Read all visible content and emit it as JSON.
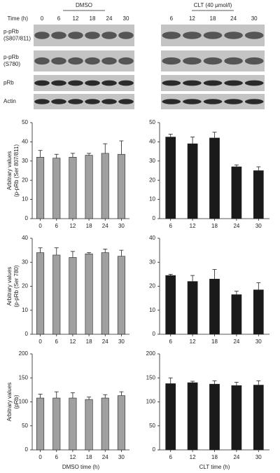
{
  "blot": {
    "time_label": "Time (h)",
    "groups": [
      {
        "label": "DMSO",
        "times": [
          "0",
          "6",
          "12",
          "18",
          "24",
          "30"
        ]
      },
      {
        "label": "CLT (40 μmol/l)",
        "times": [
          "6",
          "12",
          "18",
          "24",
          "30"
        ]
      }
    ],
    "rows": [
      [
        "p-pRb",
        "(S807/811)"
      ],
      [
        "p-pRb",
        "(S780)"
      ],
      [
        "pRb"
      ],
      [
        "Actin"
      ]
    ]
  },
  "chart_data": [
    {
      "type": "bar",
      "ylabel": [
        "Arbitrary values",
        "(p-pRb (Ser 807/811)"
      ],
      "categories": [
        "0",
        "6",
        "12",
        "18",
        "24",
        "30"
      ],
      "values": [
        32,
        31.5,
        32,
        33,
        34,
        33.5
      ],
      "errors": [
        3.5,
        2,
        2,
        1,
        5,
        7
      ],
      "color": "#a0a0a0",
      "ylim": [
        0,
        50
      ],
      "yticks": [
        0,
        10,
        20,
        30,
        40,
        50
      ]
    },
    {
      "type": "bar",
      "categories": [
        "6",
        "12",
        "18",
        "24",
        "30"
      ],
      "values": [
        42.5,
        39,
        42,
        27,
        25
      ],
      "errors": [
        1.5,
        3.5,
        3,
        1,
        2
      ],
      "color": "#1a1a1a",
      "ylim": [
        0,
        50
      ],
      "yticks": [
        0,
        10,
        20,
        30,
        40,
        50
      ]
    },
    {
      "type": "bar",
      "ylabel": [
        "Arbitrary values",
        "(p-pRb (Ser 780)"
      ],
      "categories": [
        "0",
        "6",
        "12",
        "18",
        "24",
        "30"
      ],
      "values": [
        34,
        33,
        32,
        33.5,
        34,
        32.5
      ],
      "errors": [
        2,
        3,
        2.5,
        0.5,
        1.5,
        2.5
      ],
      "color": "#a0a0a0",
      "ylim": [
        0,
        40
      ],
      "yticks": [
        0,
        10,
        20,
        30,
        40
      ]
    },
    {
      "type": "bar",
      "categories": [
        "6",
        "12",
        "18",
        "24",
        "30"
      ],
      "values": [
        24.5,
        22,
        23,
        16.5,
        18.5
      ],
      "errors": [
        0.5,
        2.5,
        4,
        1.5,
        3
      ],
      "color": "#1a1a1a",
      "ylim": [
        0,
        40
      ],
      "yticks": [
        0,
        10,
        20,
        30,
        40
      ]
    },
    {
      "type": "bar",
      "ylabel": [
        "Arbitrary values",
        "(pRb)"
      ],
      "xlabel": "DMSO time (h)",
      "categories": [
        "0",
        "6",
        "12",
        "18",
        "24",
        "30"
      ],
      "values": [
        108,
        108,
        108,
        105,
        108,
        113
      ],
      "errors": [
        8,
        13,
        11,
        5,
        7,
        8
      ],
      "color": "#a0a0a0",
      "ylim": [
        0,
        200
      ],
      "yticks": [
        0,
        50,
        100,
        150,
        200
      ]
    },
    {
      "type": "bar",
      "xlabel": "CLT time (h)",
      "categories": [
        "6",
        "12",
        "18",
        "24",
        "30"
      ],
      "values": [
        138,
        140,
        137,
        134,
        135
      ],
      "errors": [
        12,
        3,
        7,
        7,
        9
      ],
      "color": "#1a1a1a",
      "ylim": [
        0,
        200
      ],
      "yticks": [
        0,
        50,
        100,
        150,
        200
      ]
    }
  ]
}
